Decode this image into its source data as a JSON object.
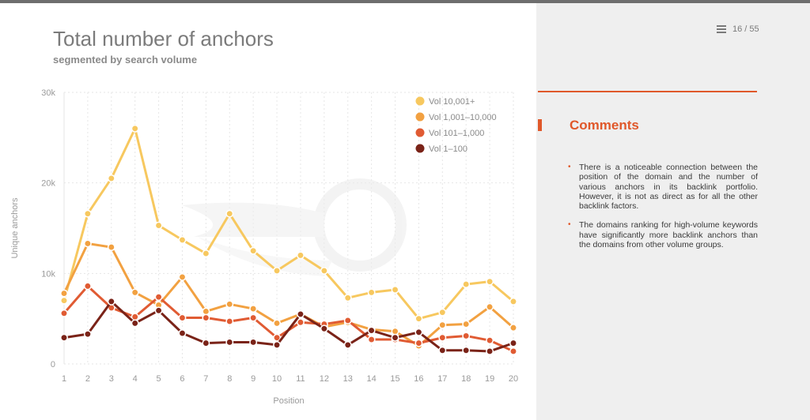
{
  "slide": {
    "title": "Total number of anchors",
    "subtitle": "segmented by search volume",
    "page_indicator": "16 / 55"
  },
  "panel": {
    "heading": "Comments",
    "comments": [
      "There is a noticeable connection between the position of the domain and the number of various anchors in its backlink portfo­lio. However, it is not as direct as for all the other backlink factors.",
      "The domains ranking for high-volume key­words have significantly more backlink an­chors than the domains from other volume groups."
    ]
  },
  "icons": {
    "menu": "menu-icon",
    "bullet": "bullet-icon"
  },
  "colors": {
    "accent": "#e0582a",
    "panel_bg": "#efefef"
  },
  "chart_data": {
    "type": "line",
    "title": "Total number of anchors",
    "subtitle": "segmented by search volume",
    "xlabel": "Position",
    "ylabel": "Unique anchors",
    "x": [
      1,
      2,
      3,
      4,
      5,
      6,
      7,
      8,
      9,
      10,
      11,
      12,
      13,
      14,
      15,
      16,
      17,
      18,
      19,
      20
    ],
    "ylim": [
      0,
      30000
    ],
    "yticks": [
      0,
      10000,
      20000,
      30000
    ],
    "ytick_labels": [
      "0",
      "10k",
      "20k",
      "30k"
    ],
    "grid": true,
    "legend_position": "top-right",
    "series": [
      {
        "name": "Vol 10,001+",
        "color": "#f7c85f",
        "values": [
          7000,
          16600,
          20500,
          26000,
          15300,
          13700,
          12200,
          16600,
          12500,
          10300,
          12000,
          10300,
          7300,
          7900,
          8200,
          5000,
          5700,
          8800,
          9100,
          6900
        ]
      },
      {
        "name": "Vol 1,001–10,000",
        "color": "#f2a141",
        "values": [
          7800,
          13300,
          12900,
          7900,
          6500,
          9600,
          5800,
          6600,
          6100,
          4500,
          5500,
          4100,
          4600,
          3800,
          3600,
          2000,
          4300,
          4400,
          6300,
          4000
        ]
      },
      {
        "name": "Vol 101–1,000",
        "color": "#e05b33",
        "values": [
          5600,
          8600,
          6200,
          5200,
          7400,
          5100,
          5100,
          4700,
          5100,
          2900,
          4600,
          4400,
          4800,
          2700,
          2700,
          2300,
          2900,
          3100,
          2600,
          1400
        ]
      },
      {
        "name": "Vol 1–100",
        "color": "#7a2318",
        "values": [
          2900,
          3300,
          6900,
          4500,
          5900,
          3400,
          2300,
          2400,
          2400,
          2100,
          5500,
          3900,
          2100,
          3700,
          2900,
          3500,
          1500,
          1500,
          1400,
          2300
        ]
      }
    ]
  }
}
